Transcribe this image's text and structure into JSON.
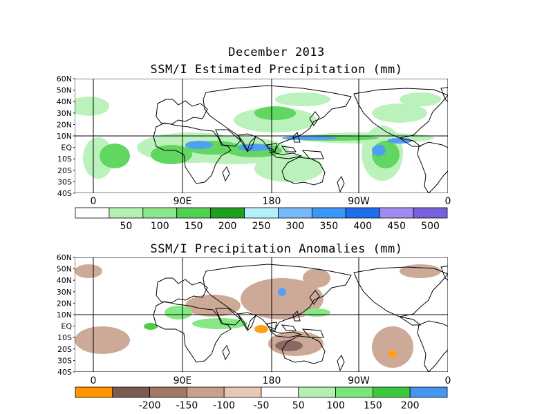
{
  "header": {
    "date_title": "December 2013",
    "panel1_title": "SSM/I Estimated Precipitation (mm)",
    "panel2_title": "SSM/I Precipitation Anomalies (mm)"
  },
  "axes": {
    "lat_labels": [
      "60N",
      "50N",
      "40N",
      "30N",
      "20N",
      "10N",
      "EQ",
      "10S",
      "20S",
      "30S",
      "40S"
    ],
    "lon_labels": [
      "0",
      "90E",
      "180",
      "90W",
      "0"
    ]
  },
  "colorbar1": {
    "labels": [
      "50",
      "100",
      "150",
      "200",
      "250",
      "300",
      "350",
      "400",
      "450",
      "500"
    ],
    "colors": [
      "#ffffff",
      "#b4f0b4",
      "#8ce68c",
      "#50d250",
      "#1ea01e",
      "#b4f0fa",
      "#78b9fa",
      "#3c96f5",
      "#1e6eeb",
      "#a08cf0",
      "#7860dc"
    ]
  },
  "colorbar2": {
    "labels": [
      "-200",
      "-150",
      "-100",
      "-50",
      "50",
      "100",
      "150",
      "200"
    ],
    "colors": [
      "#ff9600",
      "#7d5a50",
      "#a07864",
      "#c8a08c",
      "#e6c8b4",
      "#ffffff",
      "#b4f0b4",
      "#78e678",
      "#3cc83c",
      "#4696f0"
    ]
  },
  "palette": {
    "land_outline": "#000000",
    "precip_light": "#b4f0b4",
    "precip_mid": "#50d250",
    "precip_heavy": "#3c96f5",
    "anom_dry": "#c8a08c",
    "anom_dry_strong": "#7d5a50",
    "anom_wet": "#78e678",
    "anom_extreme": "#ff9600"
  }
}
